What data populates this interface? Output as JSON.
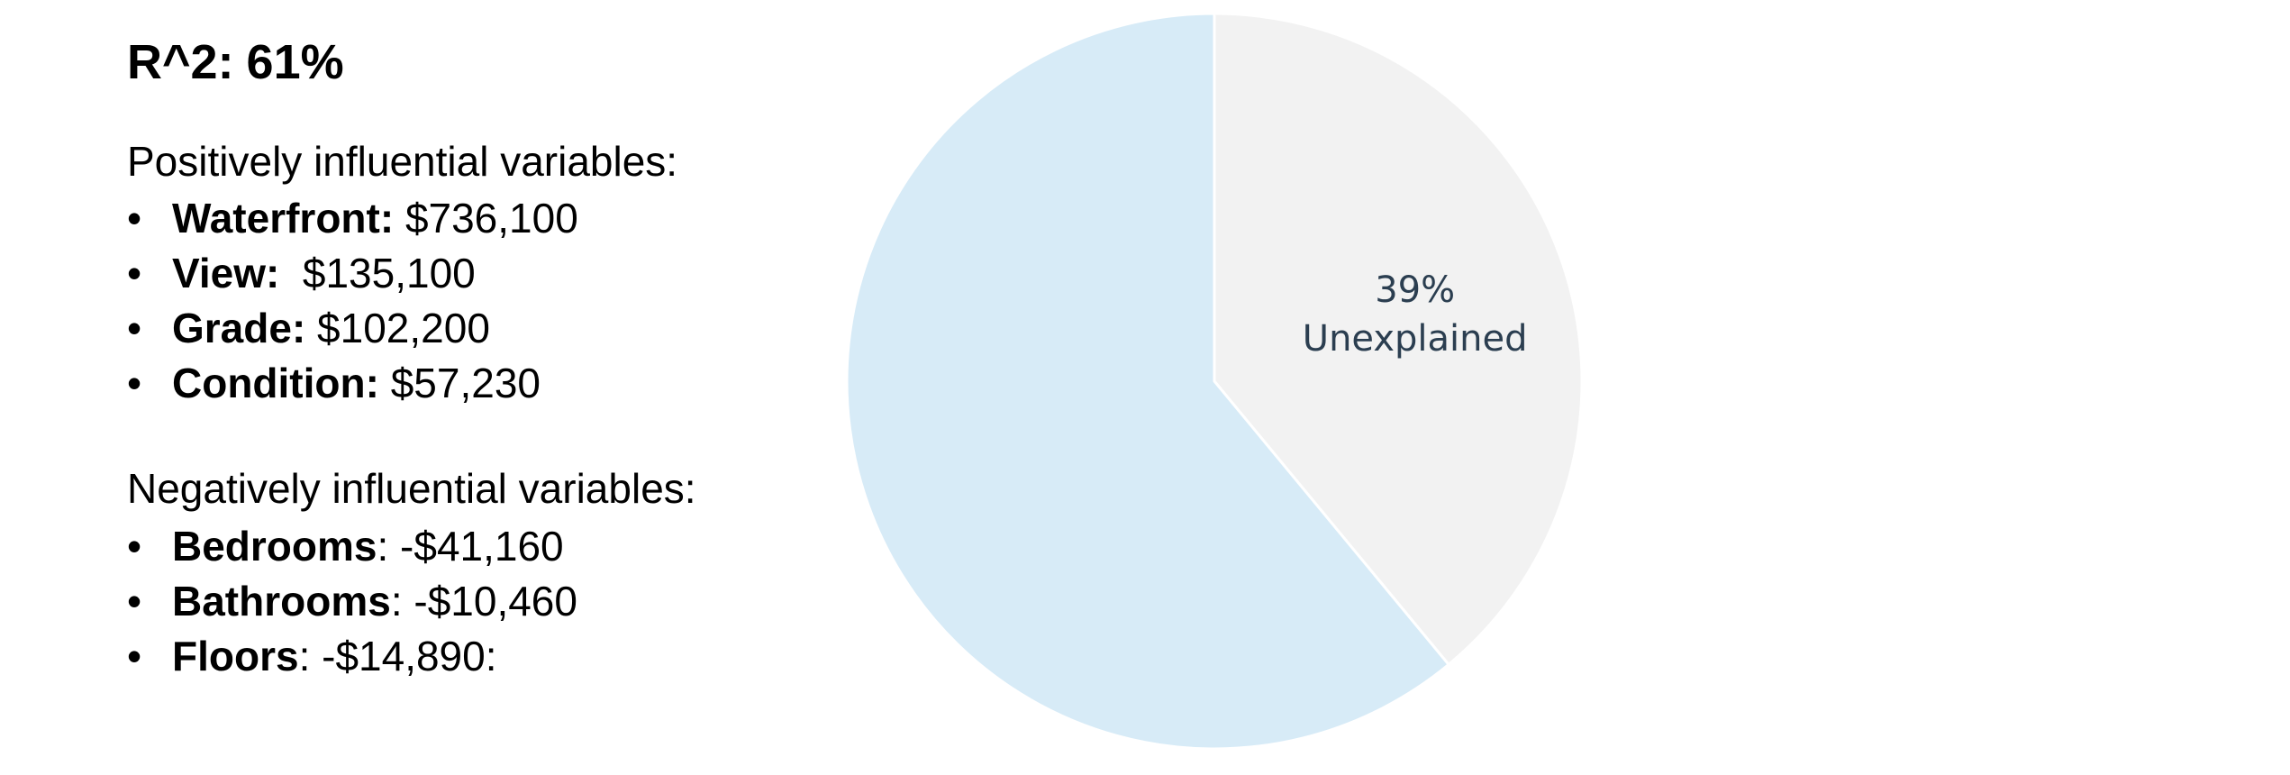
{
  "r_squared": {
    "label": "R^2:",
    "value": "61%"
  },
  "positive": {
    "heading": "Positively influential variables:",
    "items": [
      {
        "name": "Waterfront:",
        "value": "$736,100"
      },
      {
        "name": "View:",
        "value": "$135,100"
      },
      {
        "name": "Grade:",
        "value": "$102,200"
      },
      {
        "name": "Condition:",
        "value": "$57,230"
      }
    ]
  },
  "negative": {
    "heading": "Negatively influential variables:",
    "items": [
      {
        "name": "Bedrooms",
        "value": ": -$41,160"
      },
      {
        "name": "Bathrooms",
        "value": ": -$10,460"
      },
      {
        "name": "Floors",
        "value": ": -$14,890:"
      }
    ]
  },
  "chart_data": {
    "type": "pie",
    "title": "",
    "slices": [
      {
        "label": "Unexplained",
        "value": 39,
        "display_value": "39%",
        "display_label": "Unexplained",
        "color": "#f2f2f2"
      },
      {
        "label": "",
        "value": 61,
        "color": "#d7ebf7"
      }
    ],
    "start_angle_deg": 0,
    "direction": "clockwise",
    "slice_border_color": "#ffffff"
  }
}
